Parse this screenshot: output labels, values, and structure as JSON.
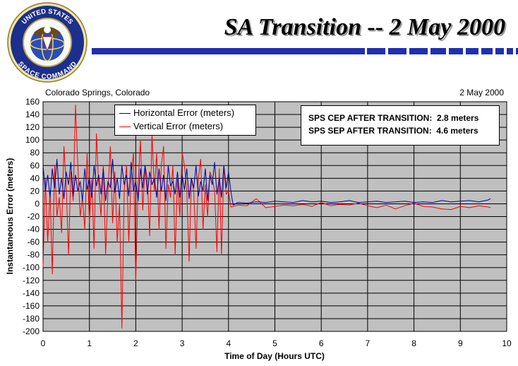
{
  "header": {
    "title": "SA Transition -- 2 May 2000",
    "emblem_text_top": "UNITED STATES",
    "emblem_text_bottom": "SPACE COMMAND",
    "colors": {
      "bar": "#1f2fb0",
      "emblem_ring": "#1c2f8c"
    }
  },
  "chart_data": {
    "type": "line",
    "location_label": "Colorado Springs, Colorado",
    "date_label": "2 May 2000",
    "xlabel": "Time of Day (Hours UTC)",
    "ylabel": "Instantaneous Error (meters)",
    "xlim": [
      0,
      10
    ],
    "ylim": [
      -200,
      160
    ],
    "x_ticks": [
      0,
      1,
      2,
      3,
      4,
      5,
      6,
      7,
      8,
      9,
      10
    ],
    "y_ticks": [
      160,
      140,
      120,
      100,
      80,
      60,
      40,
      20,
      0,
      -20,
      -40,
      -60,
      -80,
      -100,
      -120,
      -140,
      -160,
      -180,
      -200
    ],
    "grid": true,
    "plot_background": "#c0c0c0",
    "legend_position": "top-left",
    "series": [
      {
        "name": "Horizontal Error (meters)",
        "color": "#0000a0",
        "x": [
          0.0,
          0.05,
          0.1,
          0.15,
          0.2,
          0.25,
          0.3,
          0.35,
          0.4,
          0.45,
          0.5,
          0.55,
          0.6,
          0.65,
          0.7,
          0.75,
          0.8,
          0.85,
          0.9,
          0.95,
          1.0,
          1.05,
          1.1,
          1.15,
          1.2,
          1.25,
          1.3,
          1.35,
          1.4,
          1.45,
          1.5,
          1.55,
          1.6,
          1.65,
          1.7,
          1.75,
          1.8,
          1.85,
          1.9,
          1.95,
          2.0,
          2.05,
          2.1,
          2.15,
          2.2,
          2.25,
          2.3,
          2.35,
          2.4,
          2.45,
          2.5,
          2.55,
          2.6,
          2.65,
          2.7,
          2.75,
          2.8,
          2.85,
          2.9,
          2.95,
          3.0,
          3.05,
          3.1,
          3.15,
          3.2,
          3.25,
          3.3,
          3.35,
          3.4,
          3.45,
          3.5,
          3.55,
          3.6,
          3.65,
          3.7,
          3.75,
          3.8,
          3.85,
          3.9,
          3.95,
          4.0,
          4.05,
          4.1,
          4.2,
          4.4,
          4.6,
          4.8,
          5.0,
          5.2,
          5.4,
          5.6,
          5.8,
          6.0,
          6.2,
          6.4,
          6.6,
          6.8,
          7.0,
          7.2,
          7.4,
          7.6,
          7.8,
          8.0,
          8.2,
          8.4,
          8.6,
          8.8,
          9.0,
          9.2,
          9.4,
          9.6,
          9.65
        ],
        "y": [
          60,
          20,
          45,
          10,
          55,
          25,
          70,
          15,
          40,
          8,
          50,
          30,
          65,
          12,
          45,
          20,
          35,
          5,
          55,
          22,
          40,
          10,
          60,
          28,
          45,
          15,
          55,
          5,
          35,
          25,
          70,
          18,
          40,
          8,
          60,
          30,
          45,
          12,
          65,
          20,
          35,
          5,
          55,
          25,
          60,
          15,
          50,
          30,
          40,
          10,
          55,
          20,
          45,
          5,
          60,
          28,
          35,
          15,
          50,
          10,
          45,
          22,
          55,
          8,
          40,
          25,
          60,
          12,
          35,
          20,
          55,
          5,
          45,
          30,
          65,
          15,
          40,
          10,
          60,
          25,
          50,
          20,
          -2,
          2,
          1,
          3,
          2,
          4,
          3,
          2,
          5,
          3,
          4,
          2,
          3,
          5,
          2,
          3,
          4,
          2,
          3,
          4,
          2,
          3,
          2,
          5,
          3,
          4,
          5,
          3,
          6,
          8
        ]
      },
      {
        "name": "Vertical Error (meters)",
        "color": "#ff0000",
        "x": [
          0.0,
          0.05,
          0.1,
          0.15,
          0.2,
          0.25,
          0.3,
          0.35,
          0.4,
          0.45,
          0.5,
          0.55,
          0.6,
          0.65,
          0.7,
          0.75,
          0.8,
          0.85,
          0.9,
          0.95,
          1.0,
          1.05,
          1.1,
          1.15,
          1.2,
          1.25,
          1.3,
          1.35,
          1.4,
          1.45,
          1.5,
          1.55,
          1.6,
          1.65,
          1.7,
          1.75,
          1.8,
          1.85,
          1.9,
          1.95,
          2.0,
          2.05,
          2.1,
          2.15,
          2.2,
          2.25,
          2.3,
          2.35,
          2.4,
          2.45,
          2.5,
          2.55,
          2.6,
          2.65,
          2.7,
          2.75,
          2.8,
          2.85,
          2.9,
          2.95,
          3.0,
          3.05,
          3.1,
          3.15,
          3.2,
          3.25,
          3.3,
          3.35,
          3.4,
          3.45,
          3.5,
          3.55,
          3.6,
          3.65,
          3.7,
          3.75,
          3.8,
          3.85,
          3.9,
          3.95,
          4.0,
          4.05,
          4.1,
          4.2,
          4.4,
          4.6,
          4.8,
          5.0,
          5.2,
          5.4,
          5.6,
          5.8,
          6.0,
          6.2,
          6.4,
          6.6,
          6.8,
          7.0,
          7.2,
          7.4,
          7.6,
          7.8,
          8.0,
          8.2,
          8.4,
          8.6,
          8.8,
          9.0,
          9.2,
          9.4,
          9.6,
          9.65
        ],
        "y": [
          -100,
          40,
          -60,
          20,
          -110,
          60,
          -20,
          10,
          -45,
          90,
          30,
          -80,
          50,
          5,
          155,
          60,
          -20,
          10,
          -40,
          80,
          -30,
          40,
          -70,
          110,
          30,
          -20,
          60,
          -80,
          20,
          90,
          -30,
          50,
          -60,
          0,
          -195,
          20,
          60,
          -60,
          40,
          80,
          -120,
          30,
          100,
          -10,
          60,
          40,
          -50,
          110,
          20,
          80,
          -40,
          60,
          90,
          -70,
          30,
          10,
          60,
          -80,
          40,
          -20,
          80,
          60,
          20,
          -90,
          40,
          20,
          -70,
          40,
          70,
          -40,
          30,
          -20,
          50,
          40,
          20,
          -75,
          55,
          -80,
          60,
          15,
          20,
          -5,
          -4,
          -2,
          -3,
          8,
          -6,
          -4,
          -2,
          -3,
          -1,
          -4,
          2,
          -3,
          -1,
          -2,
          1,
          -3,
          -6,
          -2,
          -8,
          -3,
          1,
          -4,
          -5,
          -8,
          -9,
          -4,
          -6,
          -3,
          -5,
          -6
        ]
      }
    ],
    "annotations": [
      {
        "label": "SPS CEP AFTER TRANSITION:",
        "value": "2.8 meters"
      },
      {
        "label": "SPS SEP AFTER TRANSITION:",
        "value": "4.6 meters"
      }
    ]
  }
}
